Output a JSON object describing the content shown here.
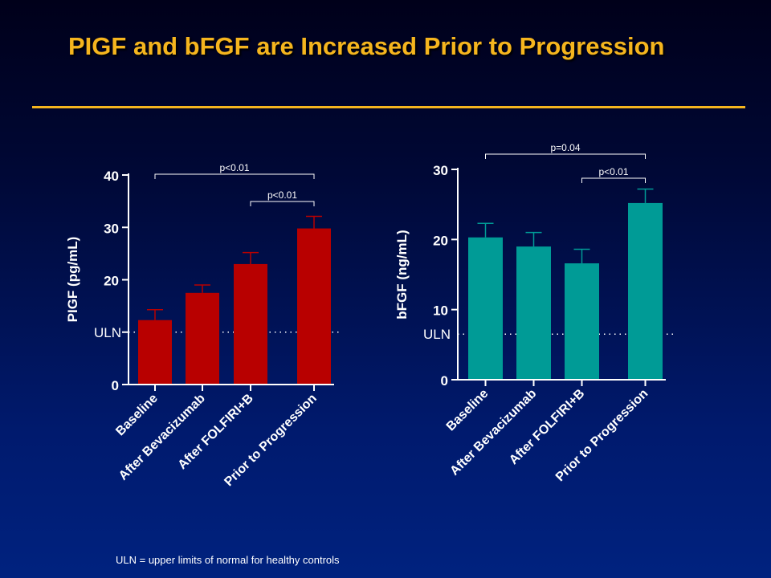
{
  "slide": {
    "title": "PIGF and bFGF are Increased Prior to Progression",
    "footnote": "ULN = upper limits of normal for healthy controls"
  },
  "chart_data": [
    {
      "type": "bar",
      "ylabel": "PIGF (pg/mL)",
      "categories": [
        "Baseline",
        "After Bevacizumab",
        "After FOLFIRI+B",
        "Prior to Progression"
      ],
      "values": [
        12.3,
        17.5,
        23.0,
        29.8
      ],
      "errors": [
        2.0,
        1.5,
        2.2,
        2.3
      ],
      "yticks": [
        0,
        10,
        20,
        30,
        40
      ],
      "ytick_labels": [
        "0",
        "",
        "20",
        "30",
        "40"
      ],
      "ylim": [
        0,
        40
      ],
      "uln": {
        "label": "ULN",
        "value": 10
      },
      "annotations": [
        {
          "text": "p<0.01",
          "from": 0,
          "to": 3
        },
        {
          "text": "p<0.01",
          "from": 2,
          "to": 3
        }
      ],
      "bar_color": "#b80000"
    },
    {
      "type": "bar",
      "ylabel": "bFGF (ng/mL)",
      "categories": [
        "Baseline",
        "After Bevacizumab",
        "After FOLFIRI+B",
        "Prior to Progression"
      ],
      "values": [
        20.3,
        19.0,
        16.6,
        25.2
      ],
      "errors": [
        2.0,
        2.0,
        2.0,
        2.0
      ],
      "yticks": [
        0,
        10,
        20,
        30
      ],
      "ytick_labels": [
        "0",
        "10",
        "20",
        "30"
      ],
      "ylim": [
        0,
        30
      ],
      "uln": {
        "label": "ULN",
        "value": 6.5
      },
      "annotations": [
        {
          "text": "p=0.04",
          "from": 0,
          "to": 3
        },
        {
          "text": "p<0.01",
          "from": 2,
          "to": 3
        }
      ],
      "bar_color": "#009b96"
    }
  ]
}
